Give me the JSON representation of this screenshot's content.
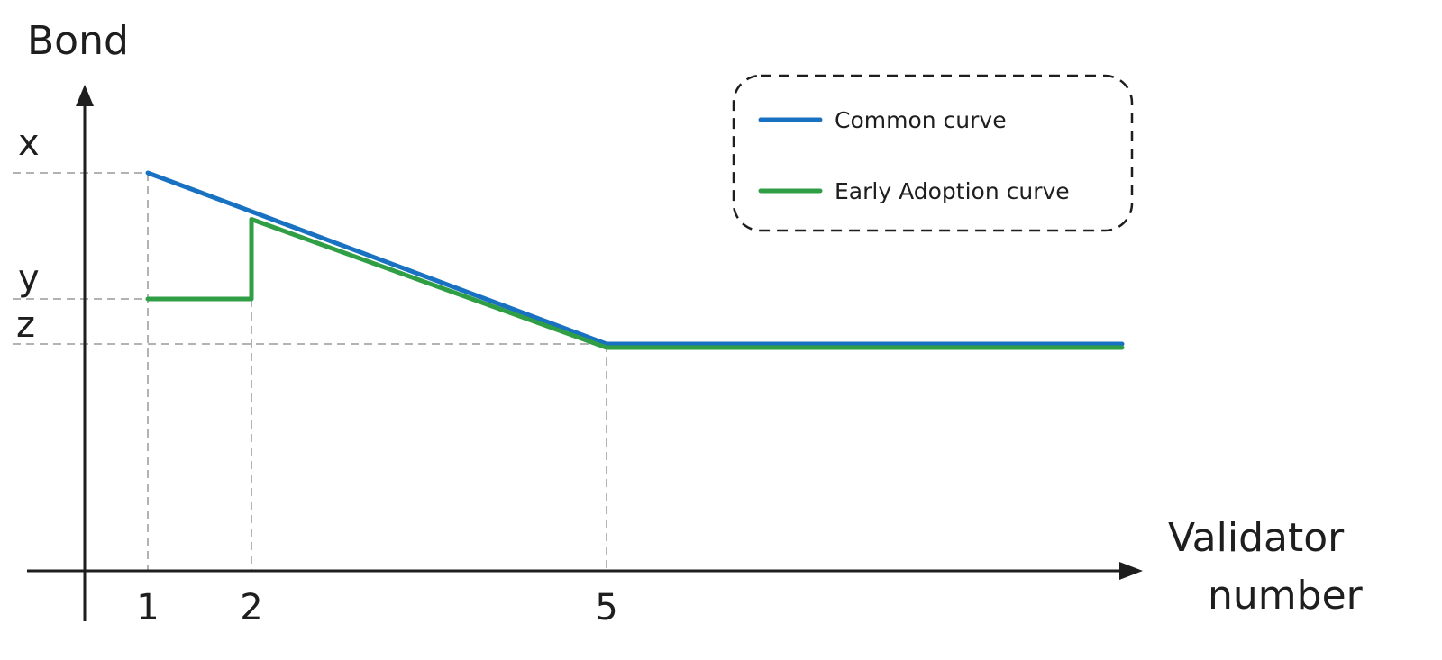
{
  "chart_data": {
    "type": "line",
    "ylabel": "Bond",
    "xlabel_lines": [
      "Validator",
      "number"
    ],
    "x_ticks": [
      {
        "value": 1,
        "label": "1"
      },
      {
        "value": 2,
        "label": "2"
      },
      {
        "value": 5,
        "label": "5"
      }
    ],
    "y_ticks": [
      {
        "key": "x",
        "label": "x"
      },
      {
        "key": "y",
        "label": "y"
      },
      {
        "key": "z",
        "label": "z"
      }
    ],
    "series": [
      {
        "name": "Common curve",
        "color": "#1971c2",
        "points": [
          {
            "x": 1,
            "y": "x"
          },
          {
            "x": 5,
            "y": "z"
          },
          {
            "x": 10,
            "y": "z"
          }
        ]
      },
      {
        "name": "Early Adoption curve",
        "color": "#2f9e44",
        "points": [
          {
            "x": 1,
            "y": "y"
          },
          {
            "x": 2,
            "y": "y"
          },
          {
            "x": 2,
            "y": "on_common_curve"
          },
          {
            "x": 5,
            "y": "z"
          },
          {
            "x": 10,
            "y": "z"
          }
        ]
      }
    ],
    "grid": "dashed guide lines at labeled ticks",
    "legend_position": "top-right",
    "legend_border": "dashed rounded"
  }
}
